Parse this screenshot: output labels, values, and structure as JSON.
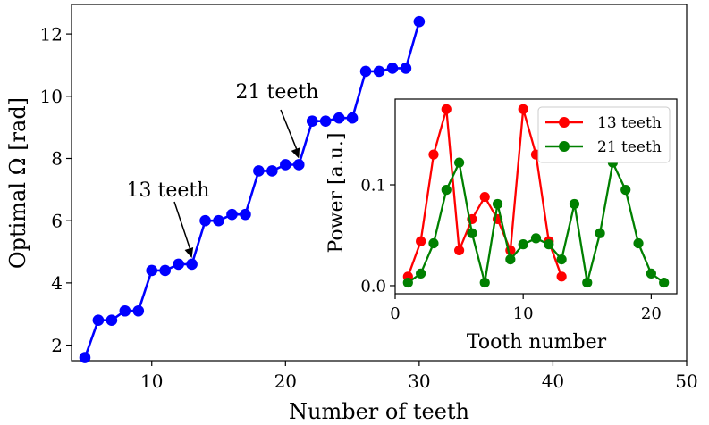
{
  "chart_data": [
    {
      "type": "line",
      "name": "main",
      "xlabel": "Number of teeth",
      "ylabel": "Optimal Ω [rad]",
      "xlim": [
        4,
        50
      ],
      "ylim": [
        1.5,
        12.95
      ],
      "xticks": [
        10,
        20,
        30,
        40,
        50
      ],
      "yticks": [
        2,
        4,
        6,
        8,
        10,
        12
      ],
      "grid": false,
      "series": [
        {
          "name": "optimal-omega",
          "color": "#0000ff",
          "x": [
            5,
            6,
            7,
            8,
            9,
            10,
            11,
            12,
            13,
            14,
            15,
            16,
            17,
            18,
            19,
            20,
            21,
            22,
            23,
            24,
            25,
            26,
            27,
            28,
            29,
            30
          ],
          "y": [
            1.6,
            2.8,
            2.8,
            3.1,
            3.1,
            4.4,
            4.4,
            4.6,
            4.6,
            6.0,
            6.0,
            6.2,
            6.2,
            7.6,
            7.6,
            7.8,
            7.8,
            9.2,
            9.2,
            9.3,
            9.3,
            10.8,
            10.8,
            10.9,
            10.9,
            12.4
          ]
        }
      ],
      "annotations": [
        {
          "text": "13 teeth",
          "target": [
            13,
            4.6
          ]
        },
        {
          "text": "21 teeth",
          "target": [
            21,
            7.8
          ]
        }
      ]
    },
    {
      "type": "line",
      "name": "inset",
      "xlabel": "Tooth number",
      "ylabel": "Power [a.u.]",
      "xlim": [
        0,
        22
      ],
      "ylim": [
        -0.008,
        0.185
      ],
      "xticks": [
        0,
        10,
        20
      ],
      "yticks": [
        0.0,
        0.1
      ],
      "ytick_labels": [
        "0.0",
        "0.1"
      ],
      "legend": "top-right",
      "series": [
        {
          "name": "13 teeth",
          "color": "#ff0000",
          "x": [
            1,
            2,
            3,
            4,
            5,
            6,
            7,
            8,
            9,
            10,
            11,
            12,
            13
          ],
          "y": [
            0.009,
            0.044,
            0.13,
            0.175,
            0.035,
            0.066,
            0.088,
            0.066,
            0.035,
            0.175,
            0.13,
            0.044,
            0.009
          ]
        },
        {
          "name": "21 teeth",
          "color": "#008000",
          "x": [
            1,
            2,
            3,
            4,
            5,
            6,
            7,
            8,
            9,
            10,
            11,
            12,
            13,
            14,
            15,
            16,
            17,
            18,
            19,
            20,
            21
          ],
          "y": [
            0.003,
            0.012,
            0.042,
            0.095,
            0.122,
            0.052,
            0.003,
            0.081,
            0.026,
            0.041,
            0.047,
            0.041,
            0.026,
            0.081,
            0.003,
            0.052,
            0.122,
            0.095,
            0.042,
            0.012,
            0.003
          ]
        }
      ]
    }
  ]
}
